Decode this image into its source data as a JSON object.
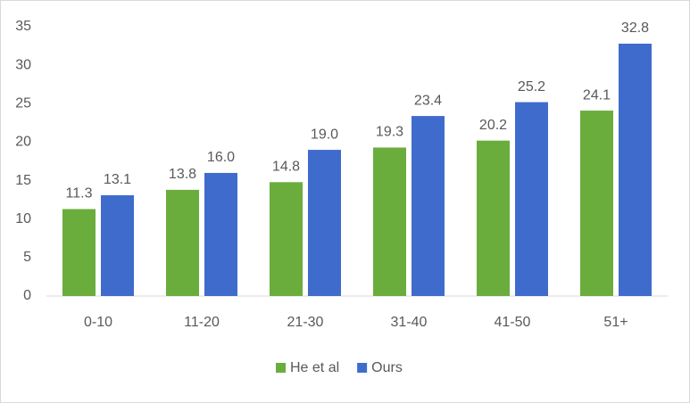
{
  "chart_data": {
    "type": "bar",
    "categories": [
      "0-10",
      "11-20",
      "21-30",
      "31-40",
      "41-50",
      "51+"
    ],
    "series": [
      {
        "name": "He et al",
        "color": "#6aad3d",
        "values": [
          11.3,
          13.8,
          14.8,
          19.3,
          20.2,
          24.1
        ],
        "value_labels": [
          "11.3",
          "13.8",
          "14.8",
          "19.3",
          "20.2",
          "24.1"
        ]
      },
      {
        "name": "Ours",
        "color": "#3f6ccc",
        "values": [
          13.1,
          16.0,
          19.0,
          23.4,
          25.2,
          32.8
        ],
        "value_labels": [
          "13.1",
          "16.0",
          "19.0",
          "23.4",
          "25.2",
          "32.8"
        ]
      }
    ],
    "ylim": [
      0,
      35
    ],
    "yticks": [
      0,
      5,
      10,
      15,
      20,
      25,
      30,
      35
    ],
    "grid": false,
    "legend": "bottom"
  }
}
